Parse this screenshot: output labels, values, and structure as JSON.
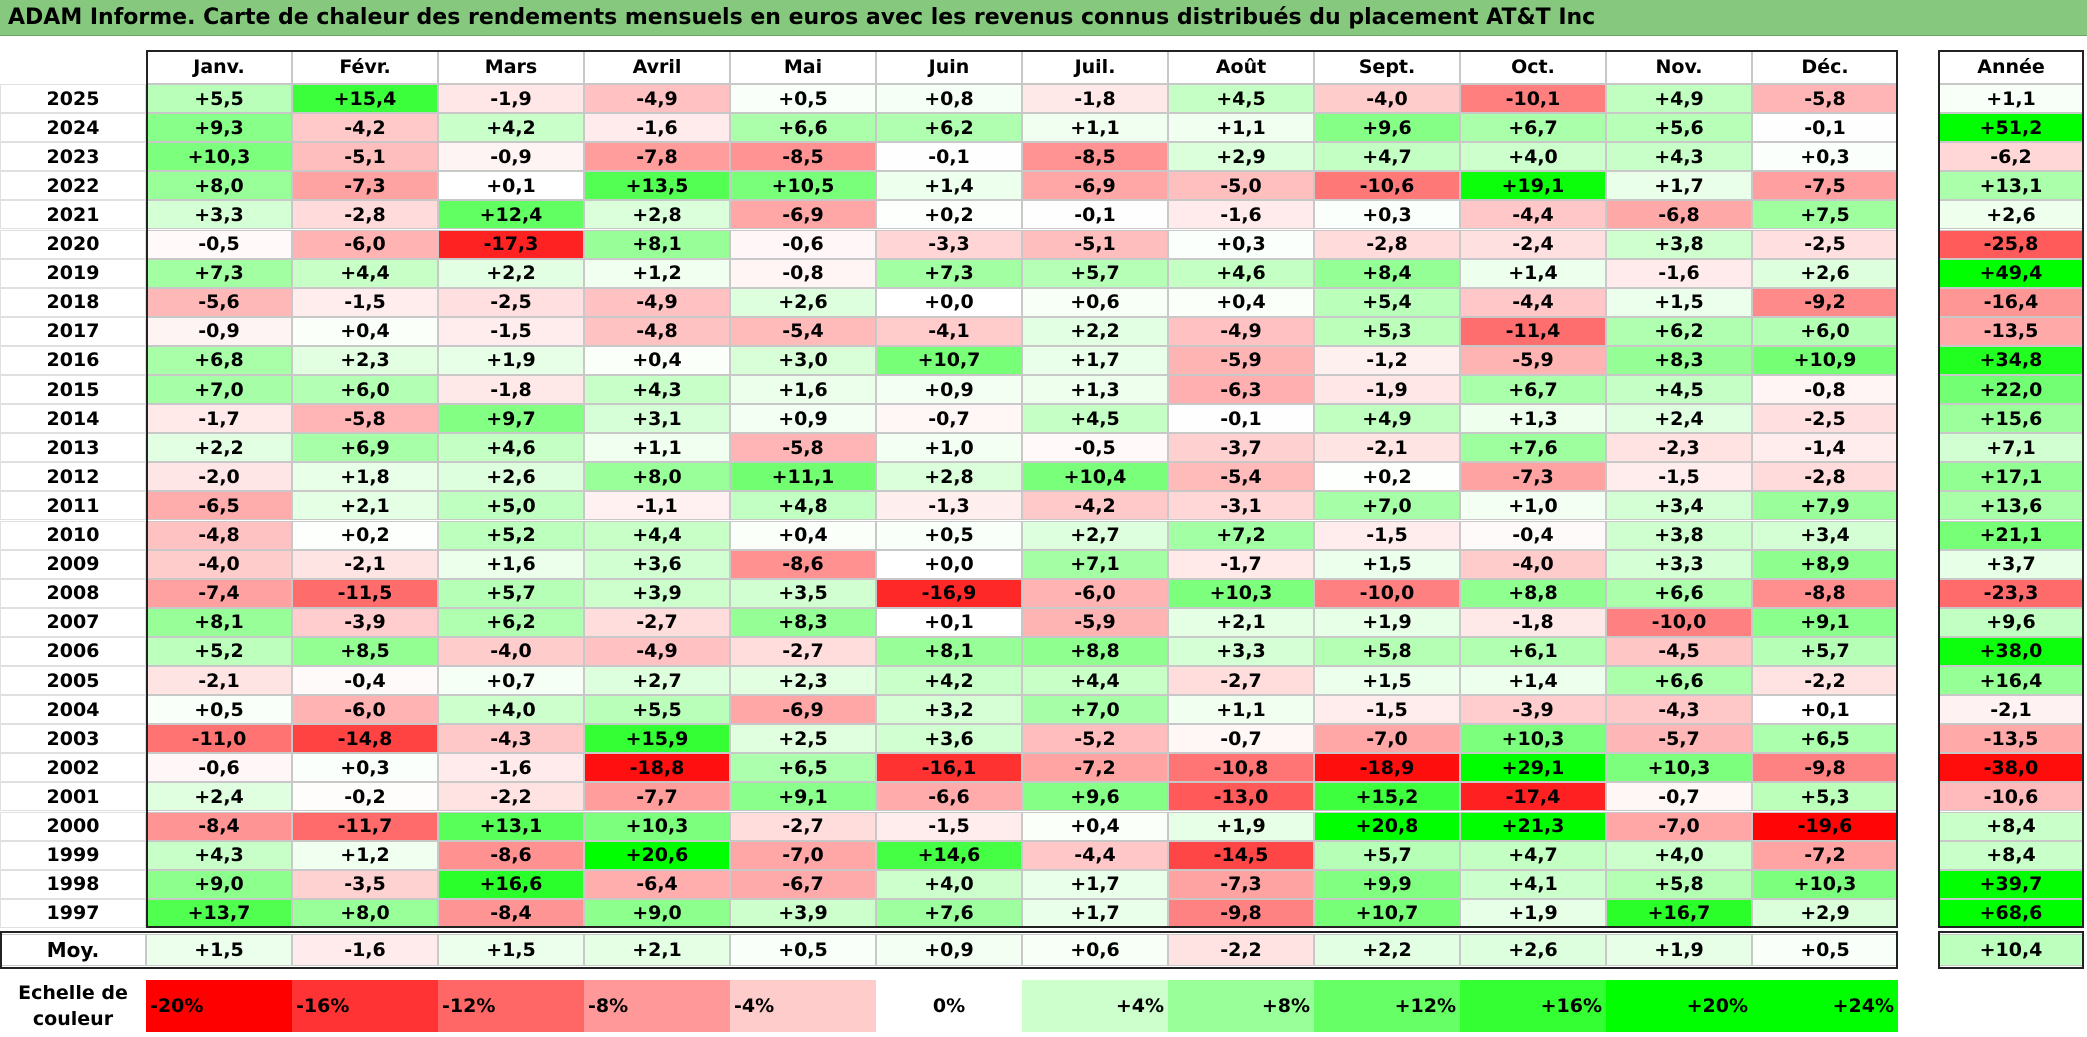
{
  "title": "ADAM Informe. Carte de chaleur des rendements mensuels en euros avec les revenus connus distribués du placement AT&T Inc",
  "chart_data": {
    "type": "heatmap",
    "months": [
      "Janv.",
      "Févr.",
      "Mars",
      "Avril",
      "Mai",
      "Juin",
      "Juil.",
      "Août",
      "Sept.",
      "Oct.",
      "Nov.",
      "Déc."
    ],
    "year_header": "Année",
    "rows": [
      {
        "year": "2025",
        "values": [
          5.5,
          15.4,
          -1.9,
          -4.9,
          0.5,
          0.8,
          -1.8,
          4.5,
          -4.0,
          -10.1,
          4.9,
          -5.8
        ],
        "annual": 1.1
      },
      {
        "year": "2024",
        "values": [
          9.3,
          -4.2,
          4.2,
          -1.6,
          6.6,
          6.2,
          1.1,
          1.1,
          9.6,
          6.7,
          5.6,
          -0.1
        ],
        "annual": 51.2
      },
      {
        "year": "2023",
        "values": [
          10.3,
          -5.1,
          -0.9,
          -7.8,
          -8.5,
          -0.1,
          -8.5,
          2.9,
          4.7,
          4.0,
          4.3,
          0.3
        ],
        "annual": -6.2
      },
      {
        "year": "2022",
        "values": [
          8.0,
          -7.3,
          0.1,
          13.5,
          10.5,
          1.4,
          -6.9,
          -5.0,
          -10.6,
          19.1,
          1.7,
          -7.5
        ],
        "annual": 13.1
      },
      {
        "year": "2021",
        "values": [
          3.3,
          -2.8,
          12.4,
          2.8,
          -6.9,
          0.2,
          -0.1,
          -1.6,
          0.3,
          -4.4,
          -6.8,
          7.5
        ],
        "annual": 2.6
      },
      {
        "year": "2020",
        "values": [
          -0.5,
          -6.0,
          -17.3,
          8.1,
          -0.6,
          -3.3,
          -5.1,
          0.3,
          -2.8,
          -2.4,
          3.8,
          -2.5
        ],
        "annual": -25.8
      },
      {
        "year": "2019",
        "values": [
          7.3,
          4.4,
          2.2,
          1.2,
          -0.8,
          7.3,
          5.7,
          4.6,
          8.4,
          1.4,
          -1.6,
          2.6
        ],
        "annual": 49.4
      },
      {
        "year": "2018",
        "values": [
          -5.6,
          -1.5,
          -2.5,
          -4.9,
          2.6,
          0.0,
          0.6,
          0.4,
          5.4,
          -4.4,
          1.5,
          -9.2
        ],
        "annual": -16.4
      },
      {
        "year": "2017",
        "values": [
          -0.9,
          0.4,
          -1.5,
          -4.8,
          -5.4,
          -4.1,
          2.2,
          -4.9,
          5.3,
          -11.4,
          6.2,
          6.0
        ],
        "annual": -13.5
      },
      {
        "year": "2016",
        "values": [
          6.8,
          2.3,
          1.9,
          0.4,
          3.0,
          10.7,
          1.7,
          -5.9,
          -1.2,
          -5.9,
          8.3,
          10.9
        ],
        "annual": 34.8
      },
      {
        "year": "2015",
        "values": [
          7.0,
          6.0,
          -1.8,
          4.3,
          1.6,
          0.9,
          1.3,
          -6.3,
          -1.9,
          6.7,
          4.5,
          -0.8
        ],
        "annual": 22.0
      },
      {
        "year": "2014",
        "values": [
          -1.7,
          -5.8,
          9.7,
          3.1,
          0.9,
          -0.7,
          4.5,
          -0.1,
          4.9,
          1.3,
          2.4,
          -2.5
        ],
        "annual": 15.6
      },
      {
        "year": "2013",
        "values": [
          2.2,
          6.9,
          4.6,
          1.1,
          -5.8,
          1.0,
          -0.5,
          -3.7,
          -2.1,
          7.6,
          -2.3,
          -1.4
        ],
        "annual": 7.1
      },
      {
        "year": "2012",
        "values": [
          -2.0,
          1.8,
          2.6,
          8.0,
          11.1,
          2.8,
          10.4,
          -5.4,
          0.2,
          -7.3,
          -1.5,
          -2.8
        ],
        "annual": 17.1
      },
      {
        "year": "2011",
        "values": [
          -6.5,
          2.1,
          5.0,
          -1.1,
          4.8,
          -1.3,
          -4.2,
          -3.1,
          7.0,
          1.0,
          3.4,
          7.9
        ],
        "annual": 13.6
      },
      {
        "year": "2010",
        "values": [
          -4.8,
          0.2,
          5.2,
          4.4,
          0.4,
          0.5,
          2.7,
          7.2,
          -1.5,
          -0.4,
          3.8,
          3.4
        ],
        "annual": 21.1
      },
      {
        "year": "2009",
        "values": [
          -4.0,
          -2.1,
          1.6,
          3.6,
          -8.6,
          0.0,
          7.1,
          -1.7,
          1.5,
          -4.0,
          3.3,
          8.9
        ],
        "annual": 3.7
      },
      {
        "year": "2008",
        "values": [
          -7.4,
          -11.5,
          5.7,
          3.9,
          3.5,
          -16.9,
          -6.0,
          10.3,
          -10.0,
          8.8,
          6.6,
          -8.8
        ],
        "annual": -23.3
      },
      {
        "year": "2007",
        "values": [
          8.1,
          -3.9,
          6.2,
          -2.7,
          8.3,
          0.1,
          -5.9,
          2.1,
          1.9,
          -1.8,
          -10.0,
          9.1
        ],
        "annual": 9.6
      },
      {
        "year": "2006",
        "values": [
          5.2,
          8.5,
          -4.0,
          -4.9,
          -2.7,
          8.1,
          8.8,
          3.3,
          5.8,
          6.1,
          -4.5,
          5.7
        ],
        "annual": 38.0
      },
      {
        "year": "2005",
        "values": [
          -2.1,
          -0.4,
          0.7,
          2.7,
          2.3,
          4.2,
          4.4,
          -2.7,
          1.5,
          1.4,
          6.6,
          -2.2
        ],
        "annual": 16.4
      },
      {
        "year": "2004",
        "values": [
          0.5,
          -6.0,
          4.0,
          5.5,
          -6.9,
          3.2,
          7.0,
          1.1,
          -1.5,
          -3.9,
          -4.3,
          0.1
        ],
        "annual": -2.1
      },
      {
        "year": "2003",
        "values": [
          -11.0,
          -14.8,
          -4.3,
          15.9,
          2.5,
          3.6,
          -5.2,
          -0.7,
          -7.0,
          10.3,
          -5.7,
          6.5
        ],
        "annual": -13.5
      },
      {
        "year": "2002",
        "values": [
          -0.6,
          0.3,
          -1.6,
          -18.8,
          6.5,
          -16.1,
          -7.2,
          -10.8,
          -18.9,
          29.1,
          10.3,
          -9.8
        ],
        "annual": -38.0
      },
      {
        "year": "2001",
        "values": [
          2.4,
          -0.2,
          -2.2,
          -7.7,
          9.1,
          -6.6,
          9.6,
          -13.0,
          15.2,
          -17.4,
          -0.7,
          5.3
        ],
        "annual": -10.6
      },
      {
        "year": "2000",
        "values": [
          -8.4,
          -11.7,
          13.1,
          10.3,
          -2.7,
          -1.5,
          0.4,
          1.9,
          20.8,
          21.3,
          -7.0,
          -19.6
        ],
        "annual": 8.4
      },
      {
        "year": "1999",
        "values": [
          4.3,
          1.2,
          -8.6,
          20.6,
          -7.0,
          14.6,
          -4.4,
          -14.5,
          5.7,
          4.7,
          4.0,
          -7.2
        ],
        "annual": 8.4
      },
      {
        "year": "1998",
        "values": [
          9.0,
          -3.5,
          16.6,
          -6.4,
          -6.7,
          4.0,
          1.7,
          -7.3,
          9.9,
          4.1,
          5.8,
          10.3
        ],
        "annual": 39.7
      },
      {
        "year": "1997",
        "values": [
          13.7,
          8.0,
          -8.4,
          9.0,
          3.9,
          7.6,
          1.7,
          -9.8,
          10.7,
          1.9,
          16.7,
          2.9
        ],
        "annual": 68.6
      }
    ],
    "average": {
      "label": "Moy.",
      "values": [
        1.5,
        -1.6,
        1.5,
        2.1,
        0.5,
        0.9,
        0.6,
        -2.2,
        2.2,
        2.6,
        1.9,
        0.5
      ],
      "annual": 10.4
    },
    "legend": {
      "label_line1": "Echelle de",
      "label_line2": "couleur",
      "stops": [
        {
          "text": "-20%",
          "value": -20
        },
        {
          "text": "-16%",
          "value": -16
        },
        {
          "text": "-12%",
          "value": -12
        },
        {
          "text": "-8%",
          "value": -8
        },
        {
          "text": "-4%",
          "value": -4
        },
        {
          "text": "0%",
          "value": 0
        },
        {
          "text": "+4%",
          "value": 4
        },
        {
          "text": "+8%",
          "value": 8
        },
        {
          "text": "+12%",
          "value": 12
        },
        {
          "text": "+16%",
          "value": 16
        },
        {
          "text": "+20%",
          "value": 20
        },
        {
          "text": "+24%",
          "value": 24
        }
      ]
    },
    "colors": {
      "negative": "#ff0000",
      "neutral": "#ffffff",
      "positive": "#00ff00"
    }
  }
}
